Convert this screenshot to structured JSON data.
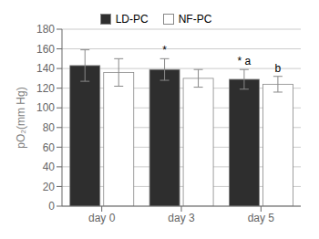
{
  "chart_data": {
    "type": "bar",
    "categories": [
      "day 0",
      "day 3",
      "day 5"
    ],
    "series": [
      {
        "name": "LD-PC",
        "color": "#2e2e2e",
        "values": [
          143,
          139,
          129
        ],
        "errors": [
          16,
          11,
          10
        ]
      },
      {
        "name": "NF-PC",
        "color": "#ffffff",
        "values": [
          136,
          130,
          124
        ],
        "errors": [
          14,
          9,
          8
        ]
      }
    ],
    "ylabel": "pO₂(mm Hg)",
    "ylim": [
      0,
      180
    ],
    "yticks": [
      0,
      20,
      40,
      60,
      80,
      100,
      120,
      140,
      160,
      180
    ],
    "grid": true,
    "legend": "top",
    "annotations": [
      {
        "text": "*",
        "category": "day 3",
        "series": "LD-PC"
      },
      {
        "text": "* a",
        "category": "day 5",
        "series": "LD-PC"
      },
      {
        "text": "b",
        "category": "day 5",
        "series": "NF-PC"
      }
    ]
  }
}
